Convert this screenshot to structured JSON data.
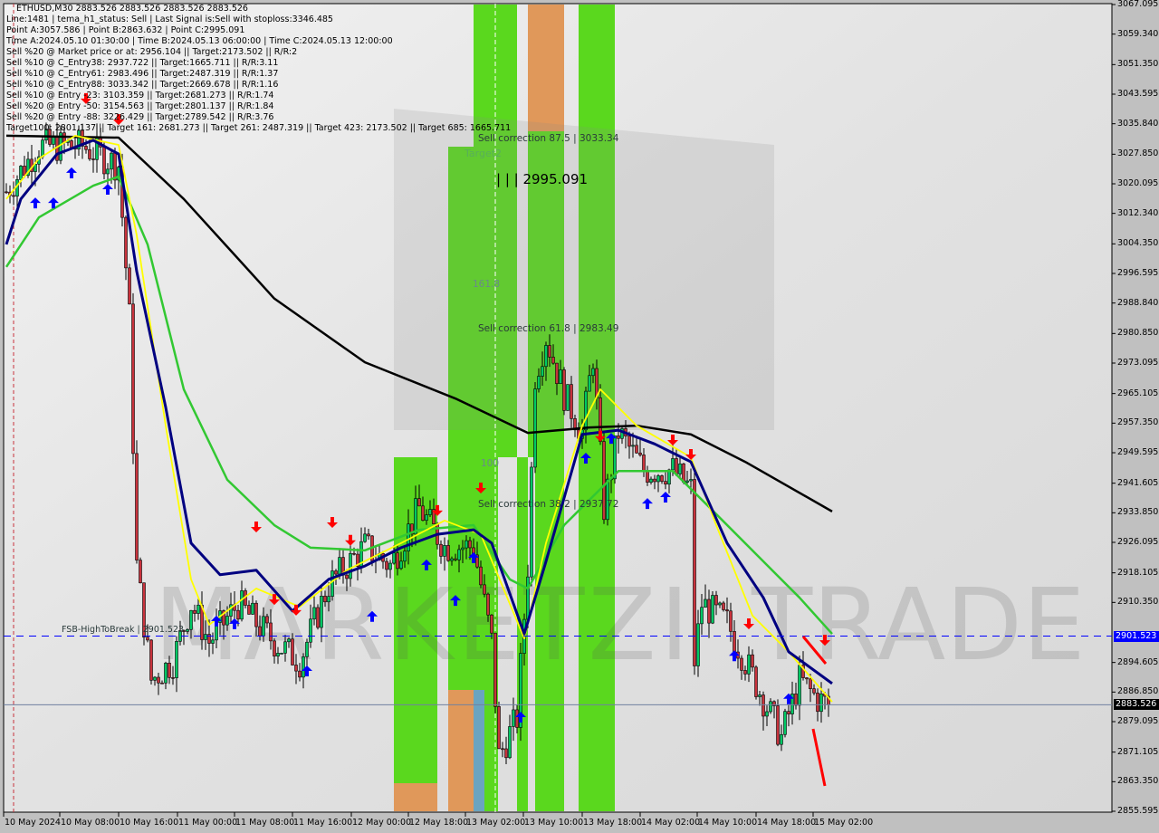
{
  "header": {
    "symbol_line": "ETHUSD,M30  2883.526 2883.526 2883.526 2883.526",
    "lines": [
      "Line:1481 | tema_h1_status: Sell | Last Signal is:Sell with stoploss:3346.485",
      "Point A:3057.586 | Point B:2863.632 | Point C:2995.091",
      "Time A:2024.05.10 01:30:00 | Time B:2024.05.13 06:00:00 | Time C:2024.05.13 12:00:00",
      "Sell %20 @ Market price or at: 2956.104 || Target:2173.502 || R/R:2",
      "Sell %10 @ C_Entry38: 2937.722 || Target:1665.711 || R/R:3.11",
      "Sell %10 @ C_Entry61: 2983.496 || Target:2487.319 || R/R:1.37",
      "Sell %10 @ C_Entry88: 3033.342 || Target:2669.678 || R/R:1.16",
      "Sell %10 @ Entry -23: 3103.359 || Target:2681.273 || R/R:1.74",
      "Sell %20 @ Entry -50: 3154.563 || Target:2801.137 || R/R:1.84",
      "Sell %20 @ Entry -88: 3226.429 || Target:2789.542 || R/R:3.76",
      "Target100: 2801.137 || Target 161: 2681.273 || Target 261: 2487.319 || Target 423: 2173.502 || Target 685: 1665.711"
    ]
  },
  "annotations": {
    "sell_corr_875": "Sell correction 87.5 | 3033.34",
    "target2": "Target2",
    "point_c": "| | | 2995.091",
    "fib_1618": "161.8",
    "sell_corr_618": "Sell correction 61.8 | 2983.49",
    "fib_100": "100",
    "sell_corr_382": "Sell correction 38.2 | 2937.72",
    "fsb": "FSB-HighToBreak | 2901.523"
  },
  "watermark": "MARKETZI TRADE",
  "colors": {
    "bull": "#00c864",
    "bear": "#c8323c",
    "zone_green": "#5ad81e",
    "zone_orange": "#e0985a",
    "zone_blue": "#6aa4c0",
    "ma_long": "#000000",
    "ma_green": "#32c832",
    "ma_navy": "#000080",
    "ma_yellow": "#ffff00",
    "fsb_line": "#0000ff",
    "bid_line": "#7080a0"
  },
  "chart_data": {
    "type": "candlestick",
    "symbol": "ETHUSD",
    "timeframe": "M30",
    "ylim": [
      2855.595,
      3067.095
    ],
    "y_ticks": [
      "3067.095",
      "3059.340",
      "3051.350",
      "3043.595",
      "3035.840",
      "3027.850",
      "3020.095",
      "3012.340",
      "3004.350",
      "2996.595",
      "2988.840",
      "2980.850",
      "2973.095",
      "2965.105",
      "2957.350",
      "2949.595",
      "2941.605",
      "2933.850",
      "2926.095",
      "2918.105",
      "2910.350",
      "2894.605",
      "2886.850",
      "2879.095",
      "2871.105",
      "2863.350",
      "2855.595"
    ],
    "x_ticks": [
      "10 May 2024",
      "10 May 08:00",
      "10 May 16:00",
      "11 May 00:00",
      "11 May 08:00",
      "11 May 16:00",
      "12 May 00:00",
      "12 May 18:00",
      "13 May 02:00",
      "13 May 10:00",
      "13 May 18:00",
      "14 May 02:00",
      "14 May 10:00",
      "14 May 18:00",
      "15 May 02:00"
    ],
    "close_path_by_bar": [
      [
        0,
        3018
      ],
      [
        9,
        3030
      ],
      [
        21,
        3030
      ],
      [
        31,
        3025
      ],
      [
        34,
        2985
      ],
      [
        36,
        2920
      ],
      [
        40,
        2890
      ],
      [
        46,
        2895
      ],
      [
        51,
        2910
      ],
      [
        56,
        2900
      ],
      [
        64,
        2910
      ],
      [
        74,
        2900
      ],
      [
        81,
        2895
      ],
      [
        89,
        2915
      ],
      [
        99,
        2925
      ],
      [
        106,
        2920
      ],
      [
        114,
        2935
      ],
      [
        121,
        2925
      ],
      [
        129,
        2925
      ],
      [
        134,
        2900
      ],
      [
        136,
        2870
      ],
      [
        141,
        2880
      ],
      [
        144,
        2920
      ],
      [
        146,
        2970
      ],
      [
        149,
        2980
      ],
      [
        154,
        2965
      ],
      [
        159,
        2955
      ],
      [
        162,
        2975
      ],
      [
        165,
        2935
      ],
      [
        169,
        2955
      ],
      [
        176,
        2945
      ],
      [
        184,
        2945
      ],
      [
        189,
        2940
      ],
      [
        190,
        2895
      ],
      [
        192,
        2910
      ],
      [
        199,
        2905
      ],
      [
        204,
        2895
      ],
      [
        209,
        2885
      ],
      [
        214,
        2875
      ],
      [
        219,
        2890
      ],
      [
        224,
        2885
      ],
      [
        227,
        2883.526
      ]
    ],
    "ma_long": [
      [
        0,
        3032.7
      ],
      [
        31,
        3032.2
      ],
      [
        49,
        3016.1
      ],
      [
        74,
        2990
      ],
      [
        99,
        2973.3
      ],
      [
        124,
        2963.8
      ],
      [
        144,
        2954.8
      ],
      [
        161,
        2956.2
      ],
      [
        174,
        2956.7
      ],
      [
        189,
        2954.4
      ],
      [
        204,
        2947.2
      ],
      [
        228,
        2934.2
      ]
    ],
    "ma_green": [
      [
        0,
        2998.3
      ],
      [
        9,
        3011.3
      ],
      [
        24,
        3019.6
      ],
      [
        31,
        3022
      ],
      [
        39,
        3004.2
      ],
      [
        49,
        2966.2
      ],
      [
        61,
        2942.5
      ],
      [
        74,
        2930.6
      ],
      [
        84,
        2924.7
      ],
      [
        99,
        2924
      ],
      [
        114,
        2929.4
      ],
      [
        129,
        2930.6
      ],
      [
        139,
        2916.4
      ],
      [
        144,
        2914
      ],
      [
        154,
        2930.6
      ],
      [
        169,
        2944.8
      ],
      [
        184,
        2944.8
      ],
      [
        194,
        2935.4
      ],
      [
        209,
        2921.1
      ],
      [
        219,
        2911.6
      ],
      [
        228,
        2902.1
      ]
    ],
    "ma_navy": [
      [
        0,
        3004.2
      ],
      [
        4,
        3016.1
      ],
      [
        14,
        3027.9
      ],
      [
        24,
        3031.5
      ],
      [
        31,
        3027.9
      ],
      [
        36,
        2997.1
      ],
      [
        44,
        2961.5
      ],
      [
        51,
        2925.9
      ],
      [
        59,
        2917.6
      ],
      [
        69,
        2918.8
      ],
      [
        79,
        2908.1
      ],
      [
        89,
        2916.4
      ],
      [
        99,
        2919.9
      ],
      [
        109,
        2924.7
      ],
      [
        119,
        2928.2
      ],
      [
        129,
        2929.4
      ],
      [
        134,
        2925.9
      ],
      [
        143,
        2902.1
      ],
      [
        149,
        2921.1
      ],
      [
        159,
        2954.4
      ],
      [
        169,
        2955.5
      ],
      [
        179,
        2951.9
      ],
      [
        189,
        2947.2
      ],
      [
        199,
        2925.9
      ],
      [
        209,
        2911.6
      ],
      [
        216,
        2897.4
      ],
      [
        228,
        2889.1
      ]
    ],
    "ma_yellow": [
      [
        0,
        3016.1
      ],
      [
        9,
        3026.7
      ],
      [
        19,
        3032.7
      ],
      [
        31,
        3030.3
      ],
      [
        36,
        3006.6
      ],
      [
        44,
        2956.7
      ],
      [
        51,
        2916.4
      ],
      [
        56,
        2904.5
      ],
      [
        69,
        2914
      ],
      [
        81,
        2909.2
      ],
      [
        94,
        2918.8
      ],
      [
        109,
        2925.9
      ],
      [
        121,
        2931.8
      ],
      [
        131,
        2928.2
      ],
      [
        143,
        2900.9
      ],
      [
        149,
        2925.9
      ],
      [
        159,
        2956.7
      ],
      [
        164,
        2966.2
      ],
      [
        174,
        2956.7
      ],
      [
        189,
        2948.4
      ],
      [
        196,
        2930.6
      ],
      [
        206,
        2906.9
      ],
      [
        216,
        2897.4
      ],
      [
        228,
        2884.3
      ]
    ],
    "buy_arrows": [
      [
        8,
        3016.5
      ],
      [
        13,
        3016.5
      ],
      [
        18,
        3024.4
      ],
      [
        28,
        3020.1
      ],
      [
        58,
        2906.9
      ],
      [
        63,
        2906.2
      ],
      [
        83,
        2893.8
      ],
      [
        101,
        2908.1
      ],
      [
        116,
        2921.6
      ],
      [
        124,
        2912.3
      ],
      [
        129,
        2923.5
      ],
      [
        142,
        2881.7
      ],
      [
        160,
        2949.6
      ],
      [
        167,
        2954.8
      ],
      [
        177,
        2937.7
      ],
      [
        182,
        2939.4
      ],
      [
        201,
        2897.8
      ],
      [
        216,
        2886.5
      ]
    ],
    "sell_arrows": [
      [
        22,
        3041
      ],
      [
        31,
        3035.5
      ],
      [
        69,
        2928.7
      ],
      [
        74,
        2909.7
      ],
      [
        80,
        2906.9
      ],
      [
        90,
        2929.9
      ],
      [
        95,
        2925.2
      ],
      [
        119,
        2933
      ],
      [
        131,
        2938.9
      ],
      [
        164,
        2952.5
      ],
      [
        184,
        2951.5
      ],
      [
        189,
        2947.7
      ],
      [
        205,
        2903.3
      ],
      [
        226,
        2899
      ]
    ],
    "levels": {
      "fsb_high_to_break": "2901.523",
      "current_price": "2883.526"
    }
  }
}
